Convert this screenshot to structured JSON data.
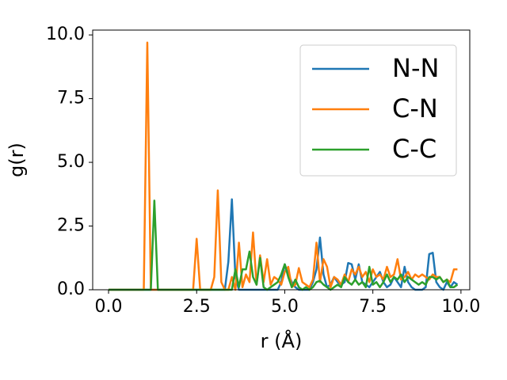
{
  "chart_data": {
    "type": "line",
    "xlabel": "r (Å)",
    "ylabel": "g(r)",
    "x": [
      0,
      0.1,
      0.2,
      0.3,
      0.4,
      0.5,
      0.6,
      0.7,
      0.8,
      0.9,
      1.0,
      1.1,
      1.2,
      1.3,
      1.4,
      1.5,
      1.6,
      1.7,
      1.8,
      1.9,
      2.0,
      2.1,
      2.2,
      2.3,
      2.4,
      2.5,
      2.6,
      2.7,
      2.8,
      2.9,
      3.0,
      3.1,
      3.2,
      3.3,
      3.4,
      3.5,
      3.6,
      3.7,
      3.8,
      3.9,
      4.0,
      4.1,
      4.2,
      4.3,
      4.4,
      4.5,
      4.6,
      4.7,
      4.8,
      4.9,
      5.0,
      5.1,
      5.2,
      5.3,
      5.4,
      5.5,
      5.6,
      5.7,
      5.8,
      5.9,
      6.0,
      6.1,
      6.2,
      6.3,
      6.4,
      6.5,
      6.6,
      6.7,
      6.8,
      6.9,
      7.0,
      7.1,
      7.2,
      7.3,
      7.4,
      7.5,
      7.6,
      7.7,
      7.8,
      7.9,
      8.0,
      8.1,
      8.2,
      8.3,
      8.4,
      8.5,
      8.6,
      8.7,
      8.8,
      8.9,
      9.0,
      9.1,
      9.2,
      9.3,
      9.4,
      9.5,
      9.6,
      9.7,
      9.8,
      9.9
    ],
    "series": [
      {
        "name": "N-N",
        "color": "#1f77b4",
        "values": [
          0,
          0,
          0,
          0,
          0,
          0,
          0,
          0,
          0,
          0,
          0,
          0,
          0,
          0,
          0,
          0,
          0,
          0,
          0,
          0,
          0,
          0,
          0,
          0,
          0,
          0,
          0,
          0,
          0,
          0,
          0,
          0,
          0,
          0,
          1.1,
          3.55,
          0.5,
          0,
          0,
          0,
          0,
          0,
          0,
          0,
          0,
          0,
          0,
          0,
          0,
          0.3,
          1.0,
          0.6,
          0.3,
          0.1,
          0,
          0,
          0,
          0,
          0.3,
          0.8,
          2.05,
          0.6,
          0.1,
          0.2,
          0.5,
          0.3,
          0.2,
          0.3,
          1.05,
          1.0,
          0.4,
          1.0,
          0.3,
          0.2,
          0.1,
          0.3,
          0.5,
          0.7,
          0.3,
          0.1,
          0.2,
          0.5,
          0.3,
          0.1,
          0.9,
          0.3,
          0.1,
          0,
          0,
          0,
          0.1,
          1.4,
          1.45,
          0.3,
          0.1,
          0,
          0.3,
          0.1,
          0.3,
          0.2
        ]
      },
      {
        "name": "C-N",
        "color": "#ff7f0e",
        "values": [
          0,
          0,
          0,
          0,
          0,
          0,
          0,
          0,
          0,
          0,
          0,
          9.7,
          0,
          0,
          0,
          0,
          0,
          0,
          0,
          0,
          0,
          0,
          0,
          0,
          0,
          2.0,
          0,
          0,
          0,
          0,
          0.5,
          3.9,
          0.3,
          0,
          0,
          0.5,
          0,
          1.85,
          0.1,
          0.6,
          0.3,
          2.25,
          0.2,
          1.35,
          0.3,
          1.2,
          0.2,
          0.5,
          0.4,
          0.2,
          0.7,
          0.9,
          0.1,
          0.2,
          0.85,
          0.3,
          0.2,
          0.1,
          0.4,
          1.85,
          0.3,
          1.2,
          0.9,
          0.1,
          0.5,
          0.4,
          0.2,
          0.6,
          0.3,
          0.8,
          0.6,
          0.9,
          0.5,
          0.7,
          0.3,
          0.8,
          0.5,
          0.6,
          0.4,
          0.9,
          0.5,
          0.6,
          1.2,
          0.4,
          0.5,
          0.7,
          0.4,
          0.6,
          0.5,
          0.6,
          0.5,
          0.4,
          0.6,
          0.5,
          0.5,
          0.3,
          0.4,
          0.3,
          0.8,
          0.8
        ]
      },
      {
        "name": "C-C",
        "color": "#2ca02c",
        "values": [
          0,
          0,
          0,
          0,
          0,
          0,
          0,
          0,
          0,
          0,
          0,
          0,
          0,
          3.5,
          0,
          0,
          0,
          0,
          0,
          0,
          0,
          0,
          0,
          0,
          0,
          0,
          0,
          0,
          0,
          0,
          0,
          0,
          0,
          0,
          0,
          0,
          0.8,
          0.1,
          0.8,
          0.8,
          1.5,
          0.5,
          0.2,
          1.25,
          0.1,
          0,
          0.1,
          0.2,
          0.3,
          0.6,
          1.0,
          0.5,
          0.1,
          0.4,
          0.1,
          0,
          0.1,
          0,
          0.1,
          0.3,
          0.35,
          0.2,
          0.1,
          0,
          0.1,
          0.2,
          0.1,
          0.5,
          0.3,
          0.2,
          0.4,
          0.2,
          0.3,
          0.1,
          0.9,
          0.2,
          0.3,
          0.1,
          0.3,
          0.6,
          0.3,
          0.5,
          0.4,
          0.6,
          0.3,
          0.5,
          0.4,
          0.3,
          0.2,
          0.3,
          0.2,
          0.5,
          0.5,
          0.4,
          0.5,
          0.3,
          0.4,
          0.1,
          0.1,
          0.2
        ]
      }
    ],
    "xlim": [
      -0.45,
      10.25
    ],
    "ylim": [
      0,
      10.19
    ],
    "xticks": [
      {
        "value": 0,
        "label": "0.0"
      },
      2.5,
      {
        "value": 5,
        "label": "5.0"
      },
      7.5,
      {
        "value": 10,
        "label": "10.0"
      }
    ],
    "yticks": [
      {
        "value": 0,
        "label": "0.0"
      },
      2.5,
      {
        "value": 5,
        "label": "5.0"
      },
      7.5,
      {
        "value": 10,
        "label": "10.0"
      }
    ],
    "legend": "upper right",
    "grid": false
  }
}
